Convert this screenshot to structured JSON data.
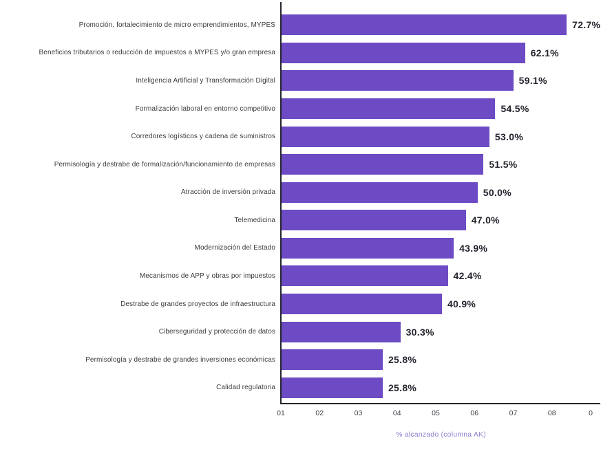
{
  "chart_data": {
    "type": "bar",
    "orientation": "horizontal",
    "title": "",
    "xlabel": "% alcanzado (columna AK)",
    "ylabel": "",
    "categories": [
      "Promoción, fortalecimiento de micro emprendimientos, MYPES",
      "Beneficios tributarios o reducción de impuestos a MYPES y/o gran empresa",
      "Inteligencia Artificial y Transformación Digital",
      "Formalización laboral en entorno competitivo",
      "Corredores logísticos y cadena de suministros",
      "Permisología y destrabe de formalización/funcionamiento de empresas",
      "Atracción de inversión privada",
      "Telemedicina",
      "Modernización del Estado",
      "Mecanismos de APP y obras por impuestos",
      "Destrabe de grandes proyectos de infraestructura",
      "Ciberseguridad y protección de datos",
      "Permisología y destrabe de grandes inversiones económicas",
      "Calidad regulatoria"
    ],
    "values": [
      72.7,
      62.1,
      59.1,
      54.5,
      53.0,
      51.5,
      50.0,
      47.0,
      43.9,
      42.4,
      40.9,
      30.3,
      25.8,
      25.8
    ],
    "value_labels": [
      "72.7%",
      "62.1%",
      "59.1%",
      "54.5%",
      "53.0%",
      "51.5%",
      "50.0%",
      "47.0%",
      "43.9%",
      "42.4%",
      "40.9%",
      "30.3%",
      "25.8%",
      "25.8%"
    ],
    "x_tick_labels": [
      "01",
      "02",
      "03",
      "04",
      "05",
      "06",
      "07",
      "08",
      "0"
    ],
    "xlim": [
      0,
      79
    ],
    "grid": false,
    "legend": false,
    "bar_color": "#6D4BC4",
    "value_label_color": "#24242e",
    "category_label_color": "#3b3b3b",
    "tick_label_color": "#3c3c44",
    "axis_line_color": "#26262e",
    "xlabel_color": "#9080CF"
  }
}
